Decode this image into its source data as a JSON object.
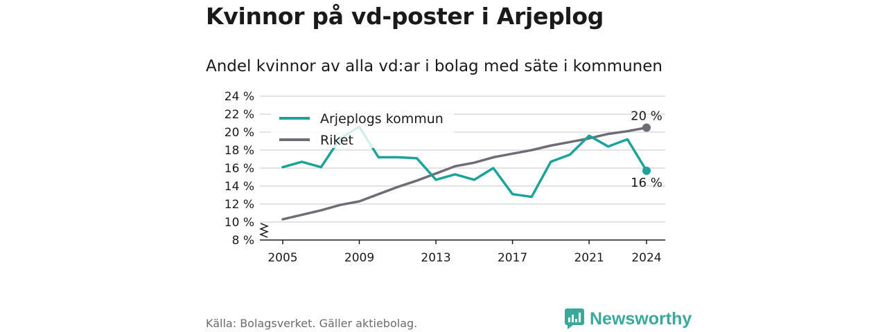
{
  "title": "Kvinnor på vd-poster i Arjeplog",
  "subtitle": "Andel kvinnor av alla vd:ar i bolag med säte i kommunen",
  "source": "Källa: Bolagsverket. Gäller aktiebolag.",
  "brand": "Newsworthy",
  "colors": {
    "kommun": "#1aa399",
    "riket": "#6e6c75",
    "grid": "#d9d9d9"
  },
  "chart_data": {
    "type": "line",
    "title": "Kvinnor på vd-poster i Arjeplog",
    "subtitle": "Andel kvinnor av alla vd:ar i bolag med säte i kommunen",
    "x": [
      2005,
      2006,
      2007,
      2008,
      2009,
      2010,
      2011,
      2012,
      2013,
      2014,
      2015,
      2016,
      2017,
      2018,
      2019,
      2020,
      2021,
      2022,
      2023,
      2024
    ],
    "x_ticks": [
      "2005",
      "2009",
      "2013",
      "2017",
      "2021",
      "2024"
    ],
    "y_ticks": [
      "8 %",
      "10 %",
      "12 %",
      "14 %",
      "16 %",
      "18 %",
      "20 %",
      "22 %",
      "24 %"
    ],
    "ylim": [
      8,
      24
    ],
    "y_axis_break": true,
    "grid": true,
    "legend_position": "top-left",
    "series": [
      {
        "name": "Arjeplogs kommun",
        "values": [
          16.1,
          16.7,
          16.1,
          19.3,
          20.6,
          17.2,
          17.2,
          17.1,
          14.7,
          15.3,
          14.7,
          16.0,
          13.1,
          12.8,
          16.7,
          17.5,
          19.6,
          18.4,
          19.2,
          15.7
        ],
        "end_label": "16 %"
      },
      {
        "name": "Riket",
        "values": [
          10.3,
          10.8,
          11.3,
          11.9,
          12.3,
          13.1,
          13.9,
          14.6,
          15.4,
          16.2,
          16.6,
          17.2,
          17.6,
          18.0,
          18.5,
          18.9,
          19.3,
          19.8,
          20.1,
          20.5
        ],
        "end_label": "20 %"
      }
    ]
  }
}
